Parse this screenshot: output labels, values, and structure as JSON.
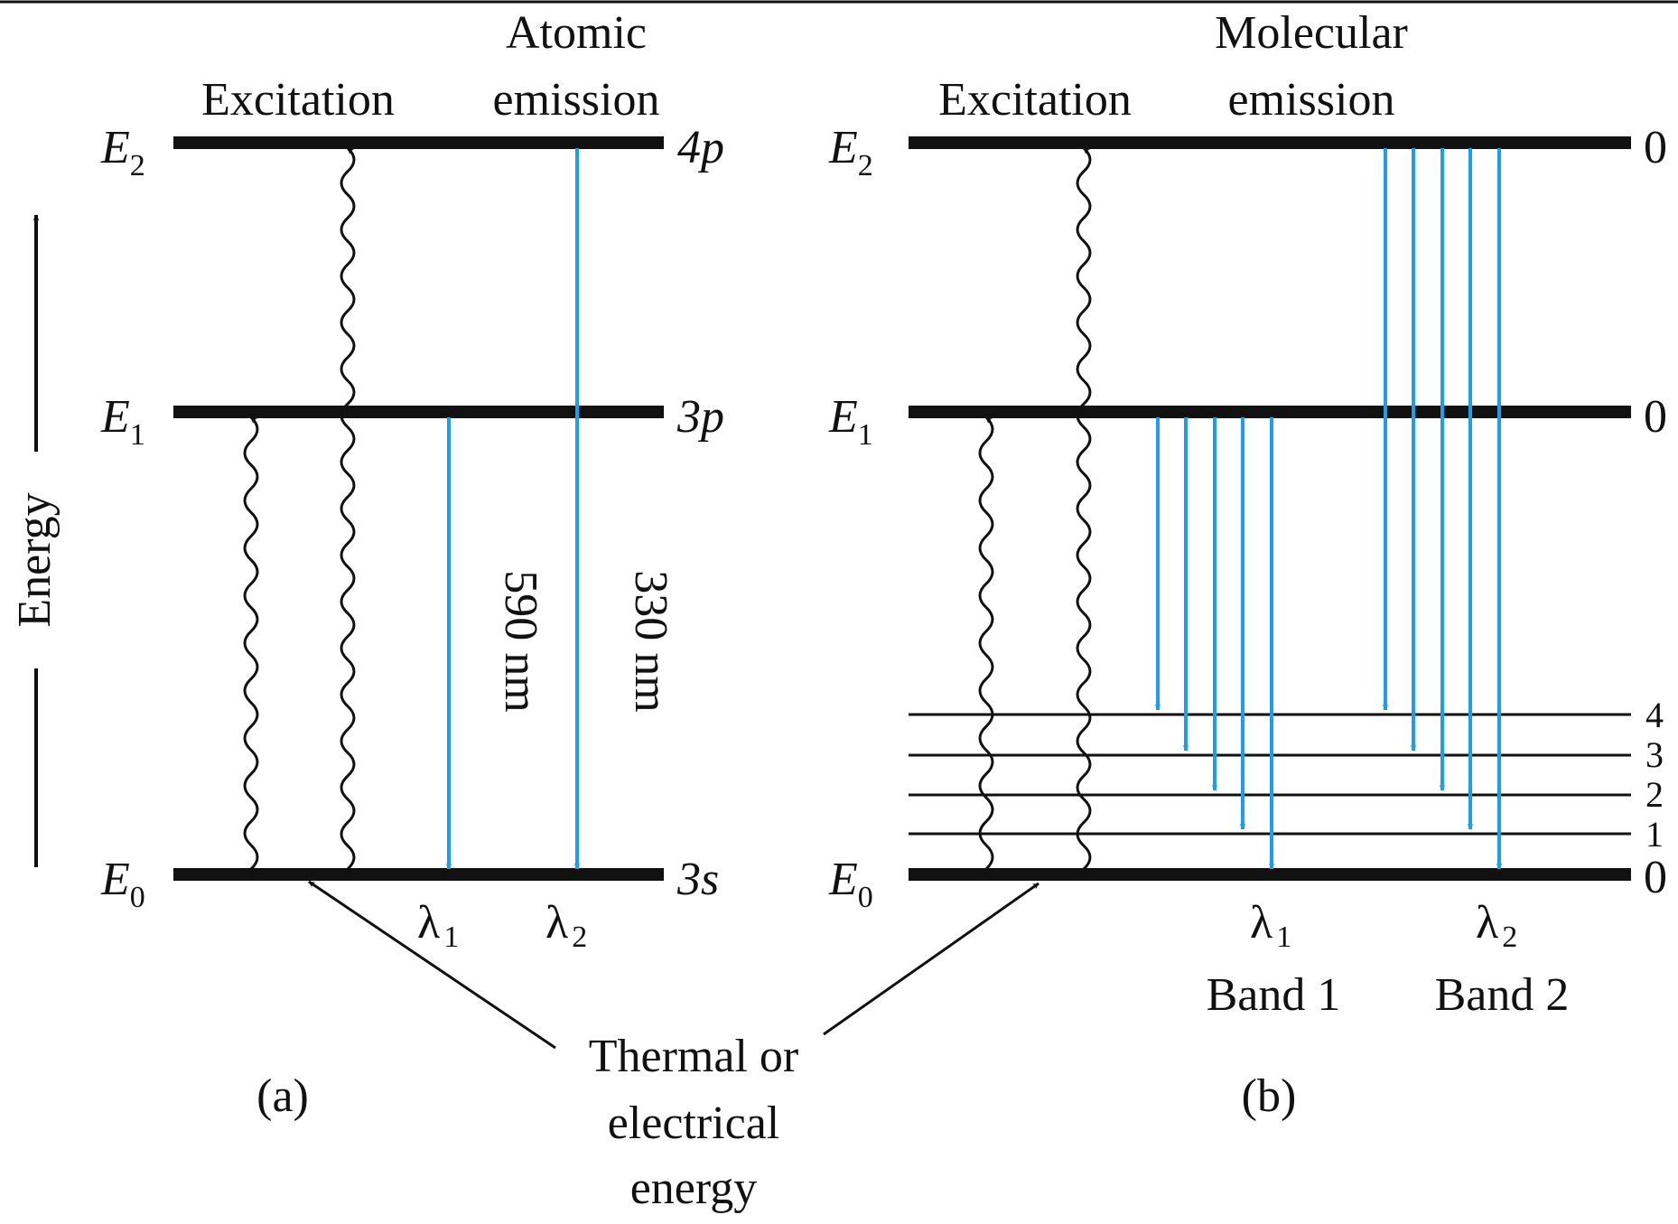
{
  "colors": {
    "emission": "#1e9ee8",
    "ink": "#111111"
  },
  "energy_axis_label": "Energy",
  "panel_a": {
    "excitation_label": "Excitation",
    "emission_label_line1": "Atomic",
    "emission_label_line2": "emission",
    "levels": [
      {
        "symbol": "E",
        "subscript": "2",
        "state": "4p"
      },
      {
        "symbol": "E",
        "subscript": "1",
        "state": "3p"
      },
      {
        "symbol": "E",
        "subscript": "0",
        "state": "3s"
      }
    ],
    "wavelengths": [
      {
        "symbol": "λ",
        "subscript": "1",
        "value": "590 nm"
      },
      {
        "symbol": "λ",
        "subscript": "2",
        "value": "330 nm"
      }
    ],
    "caption": "(a)"
  },
  "panel_b": {
    "excitation_label": "Excitation",
    "emission_label_line1": "Molecular",
    "emission_label_line2": "emission",
    "levels": [
      {
        "symbol": "E",
        "subscript": "2",
        "vib": "0"
      },
      {
        "symbol": "E",
        "subscript": "1",
        "vib": "0"
      },
      {
        "symbol": "E",
        "subscript": "0",
        "vib": "0"
      }
    ],
    "ground_vibrational_levels": [
      "4",
      "3",
      "2",
      "1"
    ],
    "bands": [
      {
        "symbol": "λ",
        "subscript": "1",
        "name": "Band 1"
      },
      {
        "symbol": "λ",
        "subscript": "2",
        "name": "Band 2"
      }
    ],
    "caption": "(b)"
  },
  "source_label_line1": "Thermal or",
  "source_label_line2": "electrical",
  "source_label_line3": "energy"
}
